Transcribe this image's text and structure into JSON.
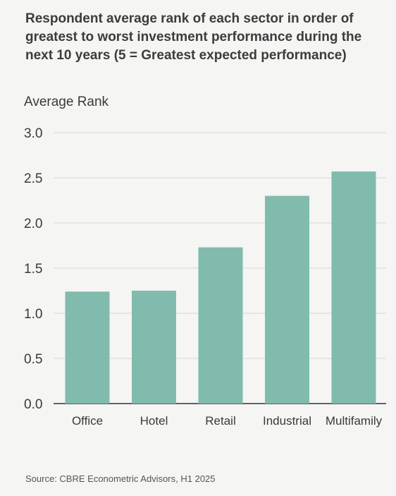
{
  "chart_data": {
    "type": "bar",
    "title": "Respondent average rank of each sector in order of greatest to worst investment performance during the next 10 years (5 = Greatest expected performance)",
    "ylabel": "Average Rank",
    "xlabel": "",
    "categories": [
      "Office",
      "Hotel",
      "Retail",
      "Industrial",
      "Multifamily"
    ],
    "values": [
      1.24,
      1.25,
      1.73,
      2.3,
      2.57
    ],
    "ylim": [
      0,
      3.0
    ],
    "yticks": [
      "0.0",
      "0.5",
      "1.0",
      "1.5",
      "2.0",
      "2.5",
      "3.0"
    ],
    "bar_color": "#80bbad",
    "grid": true
  },
  "source": "Source: CBRE Econometric Advisors, H1 2025"
}
